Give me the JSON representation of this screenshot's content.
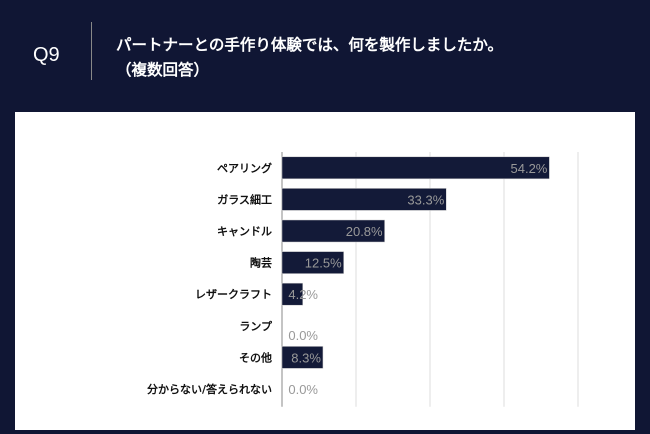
{
  "header": {
    "question_number": "Q9",
    "title_line1": "パートナーとの手作り体験では、何を製作しましたか。",
    "title_line2": "（複数回答）"
  },
  "colors": {
    "background": "#101634",
    "bar": "#131a38",
    "value_label": "#999999",
    "grid": "#dddddd"
  },
  "chart_data": {
    "type": "bar",
    "orientation": "horizontal",
    "categories": [
      "ペアリング",
      "ガラス細工",
      "キャンドル",
      "陶芸",
      "レザークラフト",
      "ランプ",
      "その他",
      "分からない/答えられない"
    ],
    "values": [
      54.2,
      33.3,
      20.8,
      12.5,
      4.2,
      0.0,
      8.3,
      0.0
    ],
    "value_labels": [
      "54.2%",
      "33.3%",
      "20.8%",
      "12.5%",
      "4.2%",
      "0.0%",
      "8.3%",
      "0.0%"
    ],
    "xlim": [
      0,
      60
    ],
    "grid": true,
    "title": "",
    "xlabel": "",
    "ylabel": ""
  }
}
